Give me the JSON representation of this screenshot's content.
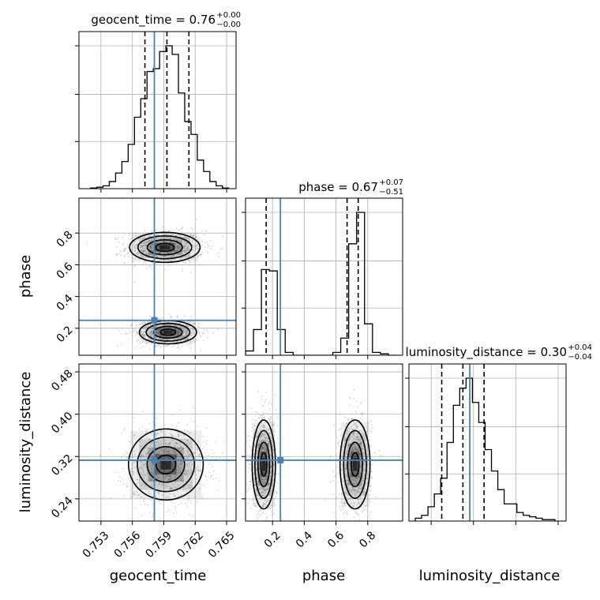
{
  "chart_data": {
    "type": "corner",
    "parameters": [
      "geocent_time",
      "phase",
      "luminosity_distance"
    ],
    "axis_labels": {
      "geocent_time": "geocent_time",
      "phase": "phase",
      "luminosity_distance": "luminosity_distance"
    },
    "ranges": {
      "geocent_time": [
        0.7509,
        0.7659
      ],
      "phase": [
        0.03,
        1.02
      ],
      "luminosity_distance": [
        0.198,
        0.495
      ]
    },
    "ticks": {
      "geocent_time": [
        "0.753",
        "0.756",
        "0.759",
        "0.762",
        "0.765"
      ],
      "phase": [
        "0.2",
        "0.4",
        "0.6",
        "0.8"
      ],
      "phase_y": [
        "0.2",
        "0.4",
        "0.6",
        "0.8"
      ],
      "luminosity_distance": [
        "0.24",
        "0.32",
        "0.40",
        "0.48"
      ]
    },
    "truths": {
      "geocent_time": 0.7581,
      "phase": 0.25,
      "luminosity_distance": 0.313
    },
    "titles": [
      {
        "param": "geocent_time",
        "text": "geocent_time = 0.76",
        "plus": "+0.00",
        "minus": "−0.00"
      },
      {
        "param": "phase",
        "text": "phase = 0.67",
        "plus": "+0.07",
        "minus": "−0.51"
      },
      {
        "param": "luminosity_distance",
        "text": "luminosity_distance = 0.30",
        "plus": "+0.04",
        "minus": "−0.04"
      }
    ],
    "quantiles": {
      "geocent_time": [
        0.7572,
        0.7593,
        0.7614
      ],
      "phase": [
        0.16,
        0.67,
        0.74
      ],
      "luminosity_distance": [
        0.26,
        0.3,
        0.34
      ]
    },
    "hist_geocent_time": {
      "edges": [
        0.752,
        0.7526,
        0.7532,
        0.7538,
        0.7544,
        0.755,
        0.7556,
        0.7562,
        0.7568,
        0.7574,
        0.758,
        0.7586,
        0.7592,
        0.7598,
        0.7604,
        0.761,
        0.7616,
        0.7622,
        0.7628,
        0.7634,
        0.764,
        0.7646,
        0.7652
      ],
      "counts": [
        0.005,
        0.01,
        0.02,
        0.05,
        0.11,
        0.19,
        0.31,
        0.5,
        0.63,
        0.82,
        0.84,
        0.96,
        1.0,
        0.94,
        0.67,
        0.47,
        0.38,
        0.2,
        0.12,
        0.05,
        0.02,
        0.005
      ]
    },
    "hist_phase": {
      "edges": [
        0.03,
        0.08,
        0.13,
        0.18,
        0.23,
        0.28,
        0.33,
        0.38,
        0.43,
        0.48,
        0.53,
        0.58,
        0.63,
        0.68,
        0.73,
        0.78,
        0.83,
        0.88,
        0.93,
        0.98
      ],
      "counts": [
        0.03,
        0.18,
        0.6,
        0.59,
        0.18,
        0.02,
        0.0,
        0.0,
        0.0,
        0.0,
        0.0,
        0.02,
        0.12,
        0.78,
        1.0,
        0.22,
        0.02,
        0.01,
        0.0
      ]
    },
    "hist_luminosity_distance": {
      "edges": [
        0.21,
        0.222,
        0.234,
        0.246,
        0.258,
        0.27,
        0.282,
        0.294,
        0.306,
        0.318,
        0.33,
        0.342,
        0.354,
        0.366,
        0.378,
        0.39,
        0.402,
        0.414,
        0.426,
        0.438,
        0.45,
        0.462,
        0.474
      ],
      "counts": [
        0.02,
        0.04,
        0.1,
        0.19,
        0.3,
        0.55,
        0.81,
        0.93,
        1.0,
        0.83,
        0.69,
        0.5,
        0.35,
        0.22,
        0.12,
        0.12,
        0.06,
        0.04,
        0.03,
        0.02,
        0.01,
        0.01
      ]
    },
    "blobs": {
      "geocent_time__phase": [
        {
          "cx": 0.7591,
          "cy": 0.71,
          "sx": 0.0016,
          "sy": 0.045
        },
        {
          "cx": 0.7594,
          "cy": 0.175,
          "sx": 0.0013,
          "sy": 0.035
        }
      ],
      "geocent_time__luminosity_distance": [
        {
          "cx": 0.7592,
          "cy": 0.305,
          "sx": 0.0017,
          "sy": 0.032
        }
      ],
      "phase__luminosity_distance": [
        {
          "cx": 0.145,
          "cy": 0.305,
          "sx": 0.035,
          "sy": 0.04
        },
        {
          "cx": 0.72,
          "cy": 0.305,
          "sx": 0.045,
          "sy": 0.04
        }
      ]
    },
    "grid": true,
    "truth_color": "#4682b4",
    "contour_color": "#000000",
    "scatter_color": "#888888"
  }
}
